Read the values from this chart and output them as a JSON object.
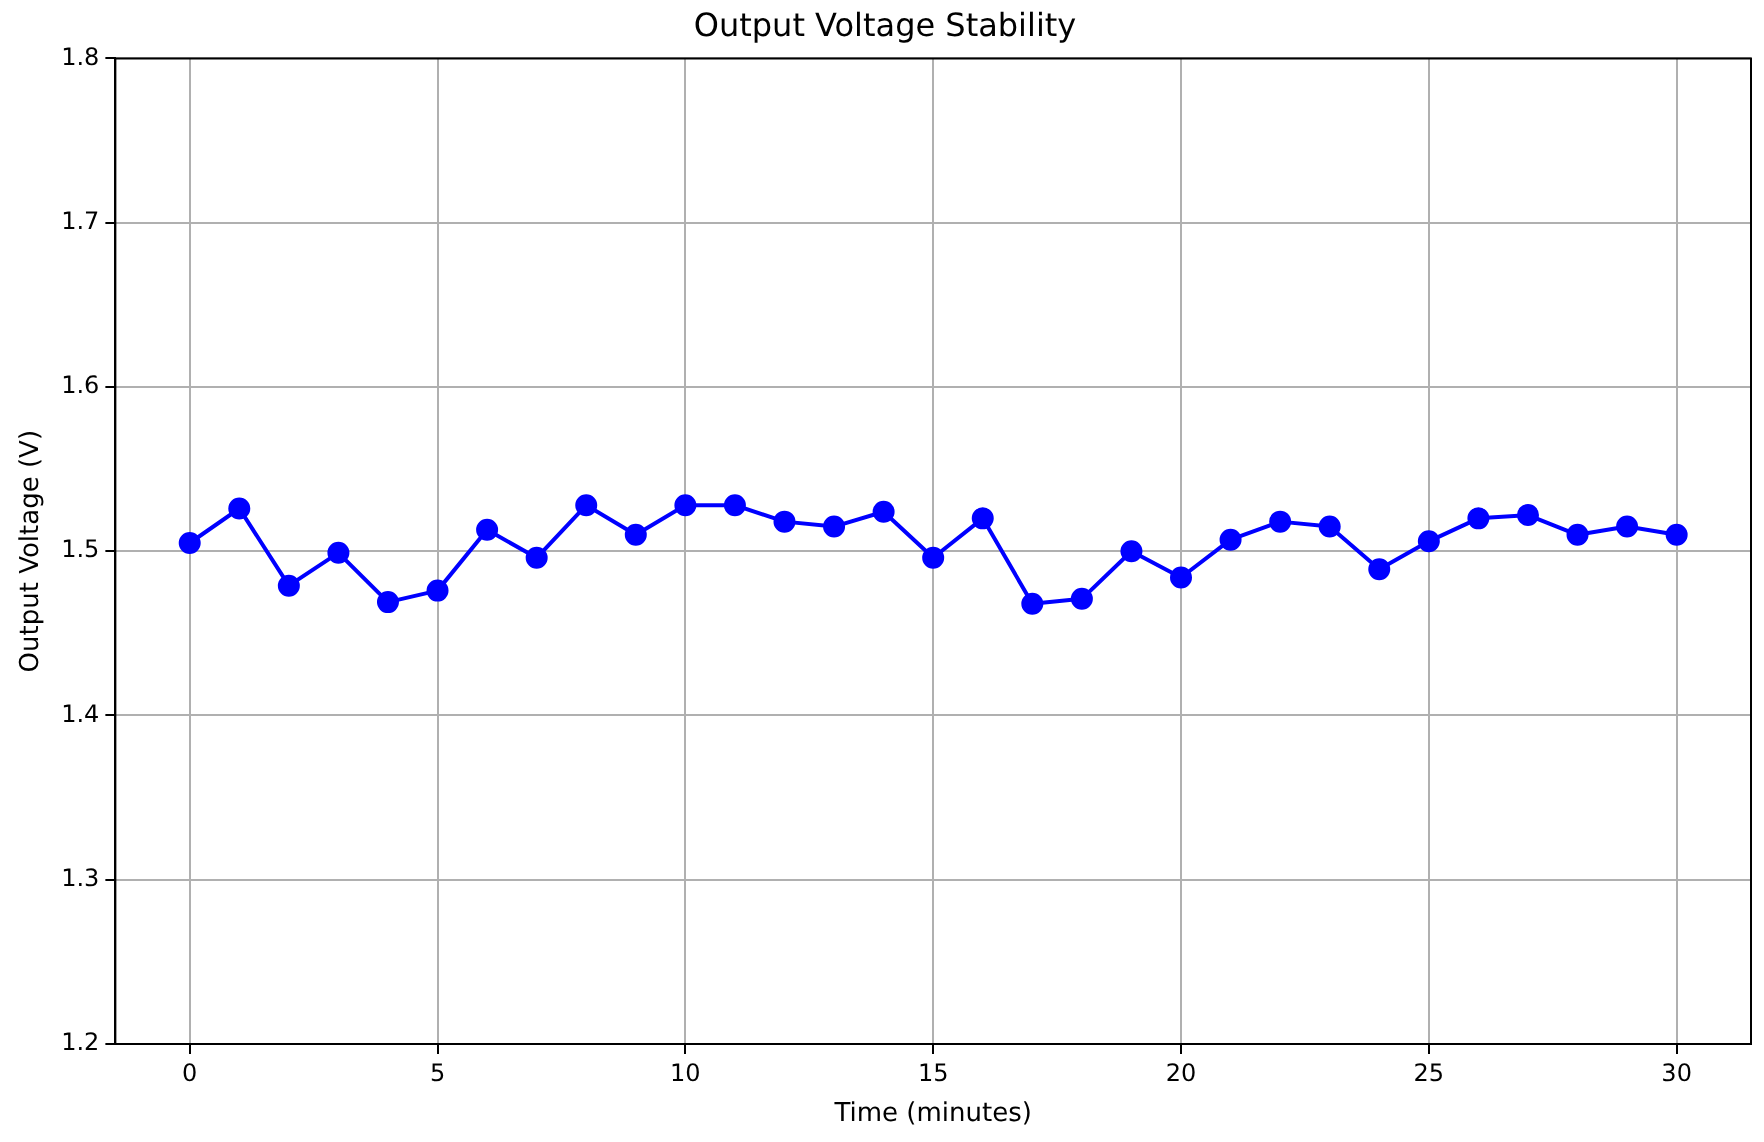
{
  "chart_data": {
    "type": "line",
    "title": "Output Voltage Stability",
    "xlabel": "Time (minutes)",
    "ylabel": "Output Voltage (V)",
    "x": [
      0,
      1,
      2,
      3,
      4,
      5,
      6,
      7,
      8,
      9,
      10,
      11,
      12,
      13,
      14,
      15,
      16,
      17,
      18,
      19,
      20,
      21,
      22,
      23,
      24,
      25,
      26,
      27,
      28,
      29,
      30
    ],
    "series": [
      {
        "color": "#0000ff",
        "values": [
          1.505,
          1.526,
          1.479,
          1.499,
          1.469,
          1.476,
          1.513,
          1.496,
          1.528,
          1.51,
          1.528,
          1.528,
          1.518,
          1.515,
          1.524,
          1.496,
          1.52,
          1.468,
          1.471,
          1.5,
          1.484,
          1.507,
          1.518,
          1.515,
          1.489,
          1.506,
          1.52,
          1.522,
          1.51,
          1.515,
          1.51
        ]
      }
    ],
    "xlim": [
      -1.5,
      31.5
    ],
    "xticks": [
      0,
      5,
      10,
      15,
      20,
      25,
      30
    ],
    "ylim": [
      1.2,
      1.8
    ],
    "yticks": [
      {
        "value": 1.2,
        "label": "1.2"
      },
      {
        "value": 1.3,
        "label": "1.3"
      },
      {
        "value": 1.4,
        "label": "1.4"
      },
      {
        "value": 1.5,
        "label": "1.5"
      },
      {
        "value": 1.6,
        "label": "1.6"
      },
      {
        "value": 1.7,
        "label": "1.7"
      },
      {
        "value": 1.8,
        "label": "1.8"
      }
    ],
    "grid": true,
    "legend": false,
    "marker": "circle",
    "line_style": "solid"
  }
}
